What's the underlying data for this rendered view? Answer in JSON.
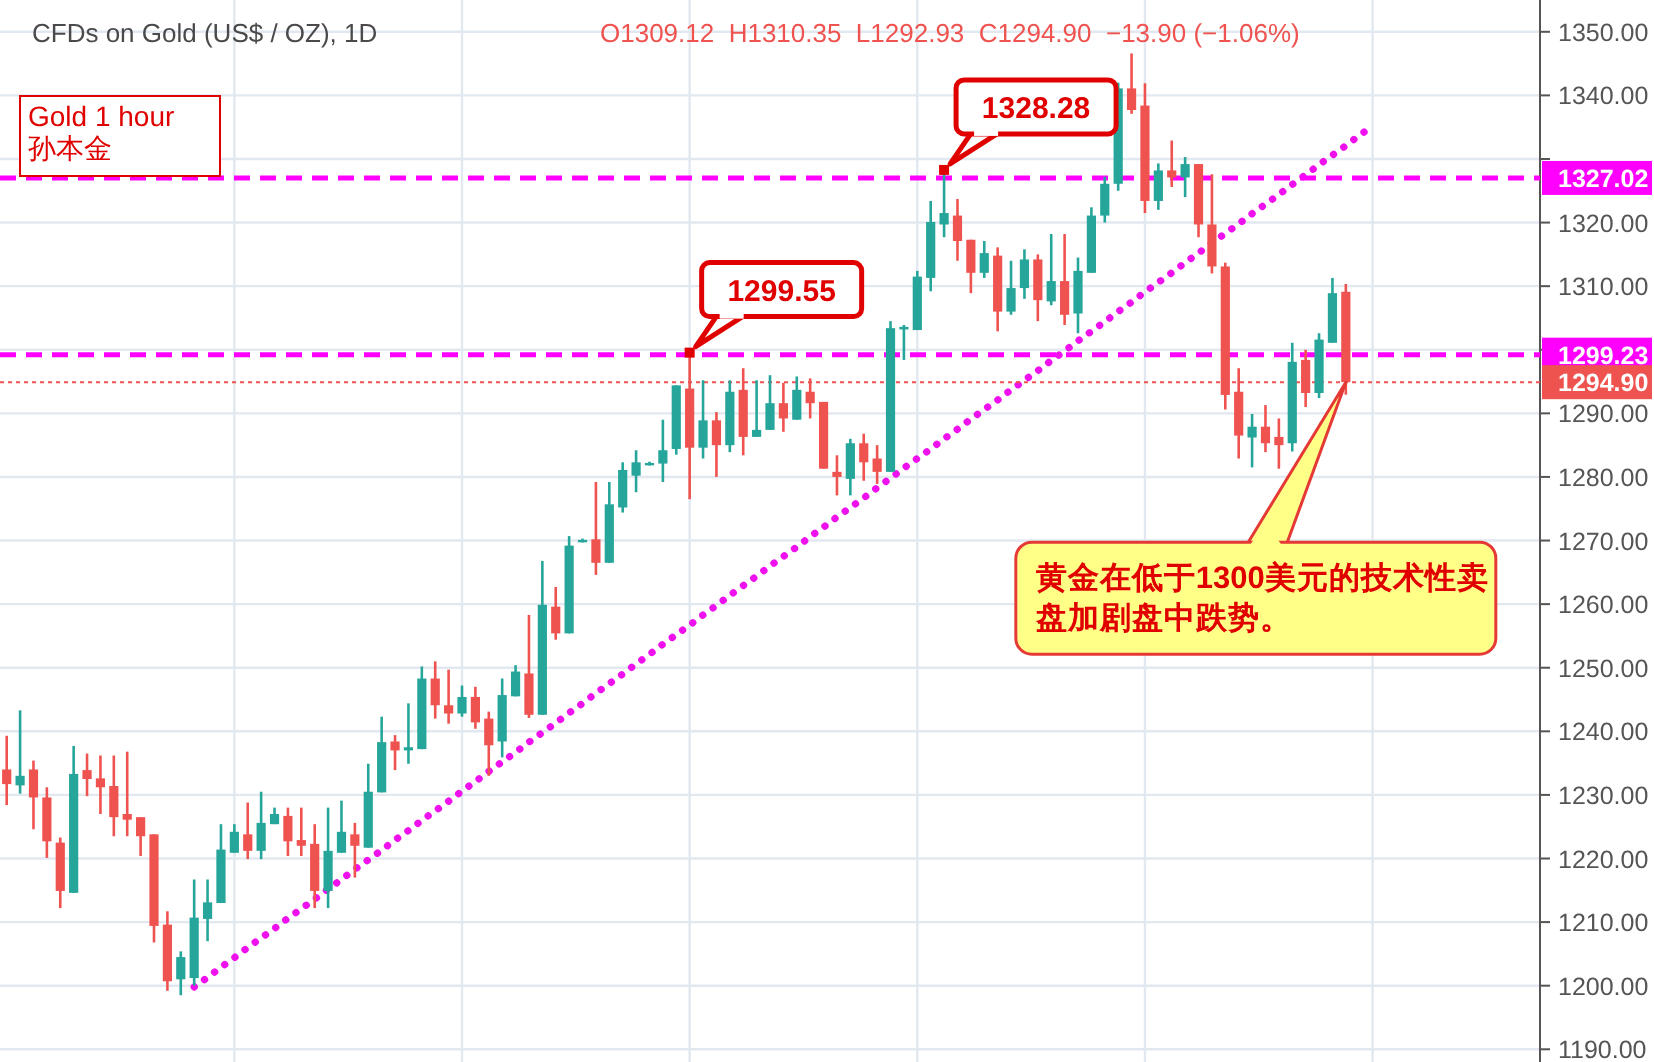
{
  "chart_data": {
    "type": "candlestick",
    "title": "CFDs on Gold (US$ / OZ), 1D",
    "subtitle": "O1309.12  H1310.35  L1292.93  C1294.90  −13.90 (−1.06%)",
    "categories": [
      null,
      null,
      null,
      null,
      null,
      null,
      null,
      null,
      null,
      null,
      null,
      null,
      null,
      null,
      null,
      null,
      null,
      null,
      null,
      null,
      null,
      null,
      null,
      null,
      null,
      null,
      null,
      null,
      null,
      null,
      null,
      null,
      null,
      null,
      null,
      null,
      null,
      null,
      null,
      null,
      null,
      null,
      null,
      null,
      null,
      null,
      null,
      null,
      null,
      null,
      null,
      null,
      null,
      null,
      null,
      null,
      null,
      null,
      null,
      null,
      null,
      null,
      null,
      null,
      null,
      null,
      null,
      null,
      null,
      null,
      null,
      null,
      null,
      null,
      null,
      null,
      null,
      null,
      null,
      null,
      null,
      null,
      null,
      null,
      null,
      null,
      null,
      null,
      null,
      null,
      null,
      null,
      null,
      null,
      null,
      null,
      null,
      null,
      null,
      null,
      null,
      null,
      null,
      null,
      null,
      null,
      null,
      null,
      null,
      null,
      null,
      null,
      null,
      null,
      null
    ],
    "ohlc": [
      [
        1234.0,
        1239.3,
        1228.4,
        1231.7
      ],
      [
        1231.5,
        1243.3,
        1230.2,
        1233.0
      ],
      [
        1234.0,
        1235.4,
        1224.6,
        1229.6
      ],
      [
        1229.6,
        1231.2,
        1220.1,
        1222.7
      ],
      [
        1222.5,
        1223.3,
        1212.2,
        1214.9
      ],
      [
        1214.6,
        1237.7,
        1214.6,
        1233.3
      ],
      [
        1233.9,
        1236.5,
        1229.8,
        1232.5
      ],
      [
        1232.6,
        1236.2,
        1227.0,
        1231.2
      ],
      [
        1231.4,
        1236.2,
        1223.5,
        1226.5
      ],
      [
        1227.0,
        1236.8,
        1223.5,
        1226.1
      ],
      [
        1226.5,
        1226.5,
        1220.4,
        1223.5
      ],
      [
        1223.8,
        1223.8,
        1206.8,
        1209.4
      ],
      [
        1209.6,
        1211.7,
        1199.2,
        1200.7
      ],
      [
        1201.0,
        1205.4,
        1198.5,
        1204.5
      ],
      [
        1201.2,
        1216.7,
        1200.0,
        1210.7
      ],
      [
        1210.5,
        1216.7,
        1207.0,
        1213.1
      ],
      [
        1213.0,
        1225.4,
        1213.0,
        1221.4
      ],
      [
        1220.9,
        1225.4,
        1220.9,
        1224.2
      ],
      [
        1223.8,
        1228.8,
        1219.9,
        1221.2
      ],
      [
        1221.2,
        1230.5,
        1219.9,
        1225.6
      ],
      [
        1225.4,
        1228.0,
        1225.4,
        1227.0
      ],
      [
        1226.7,
        1228.0,
        1220.4,
        1222.7
      ],
      [
        1222.9,
        1228.0,
        1220.4,
        1222.0
      ],
      [
        1222.3,
        1225.4,
        1212.2,
        1214.9
      ],
      [
        1214.9,
        1228.0,
        1212.2,
        1221.2
      ],
      [
        1220.9,
        1229.1,
        1220.9,
        1224.2
      ],
      [
        1223.8,
        1225.6,
        1217.0,
        1222.0
      ],
      [
        1221.7,
        1234.9,
        1221.7,
        1230.5
      ],
      [
        1230.4,
        1242.3,
        1230.4,
        1238.3
      ],
      [
        1238.4,
        1239.4,
        1233.9,
        1237.0
      ],
      [
        1237.0,
        1244.4,
        1234.9,
        1237.5
      ],
      [
        1237.2,
        1250.2,
        1237.2,
        1248.3
      ],
      [
        1248.3,
        1251.0,
        1242.0,
        1244.1
      ],
      [
        1244.1,
        1249.7,
        1241.2,
        1242.8
      ],
      [
        1242.8,
        1247.2,
        1242.3,
        1245.4
      ],
      [
        1245.4,
        1247.0,
        1240.4,
        1241.4
      ],
      [
        1242.0,
        1243.1,
        1233.0,
        1237.8
      ],
      [
        1238.4,
        1248.3,
        1235.9,
        1245.7
      ],
      [
        1245.5,
        1250.4,
        1245.5,
        1249.4
      ],
      [
        1249.1,
        1258.3,
        1242.1,
        1242.6
      ],
      [
        1242.6,
        1266.8,
        1242.6,
        1259.9
      ],
      [
        1259.6,
        1262.7,
        1254.4,
        1255.4
      ],
      [
        1255.4,
        1270.7,
        1255.4,
        1269.2
      ],
      [
        1269.9,
        1270.3,
        1269.7,
        1270.1
      ],
      [
        1270.2,
        1279.2,
        1264.6,
        1266.5
      ],
      [
        1266.5,
        1279.2,
        1266.5,
        1275.7
      ],
      [
        1275.2,
        1282.3,
        1274.4,
        1281.1
      ],
      [
        1280.2,
        1284.2,
        1277.6,
        1282.3
      ],
      [
        1282.0,
        1282.4,
        1281.8,
        1282.2
      ],
      [
        1282.1,
        1289.0,
        1279.2,
        1284.2
      ],
      [
        1284.4,
        1294.4,
        1283.5,
        1294.4
      ],
      [
        1293.9,
        1299.55,
        1276.5,
        1284.6
      ],
      [
        1284.6,
        1295.2,
        1282.9,
        1288.9
      ],
      [
        1288.9,
        1290.2,
        1280.0,
        1285.0
      ],
      [
        1285.0,
        1295.2,
        1283.9,
        1293.4
      ],
      [
        1293.7,
        1297.1,
        1283.4,
        1286.3
      ],
      [
        1286.3,
        1295.2,
        1286.3,
        1287.4
      ],
      [
        1287.4,
        1296.0,
        1287.4,
        1291.6
      ],
      [
        1291.6,
        1294.8,
        1287.1,
        1289.2
      ],
      [
        1289.0,
        1295.8,
        1289.0,
        1293.7
      ],
      [
        1293.4,
        1295.5,
        1289.2,
        1291.6
      ],
      [
        1291.8,
        1291.8,
        1281.3,
        1281.3
      ],
      [
        1280.8,
        1283.4,
        1277.1,
        1280.0
      ],
      [
        1279.7,
        1286.0,
        1277.1,
        1285.3
      ],
      [
        1285.3,
        1286.8,
        1279.4,
        1282.3
      ],
      [
        1282.9,
        1285.0,
        1278.9,
        1280.8
      ],
      [
        1280.8,
        1304.5,
        1280.8,
        1303.4
      ],
      [
        1303.2,
        1303.9,
        1298.4,
        1303.6
      ],
      [
        1303.1,
        1312.4,
        1303.1,
        1311.5
      ],
      [
        1311.3,
        1323.4,
        1309.2,
        1320.1
      ],
      [
        1319.7,
        1328.28,
        1317.7,
        1321.5
      ],
      [
        1321.1,
        1323.7,
        1314.0,
        1317.1
      ],
      [
        1317.3,
        1317.3,
        1308.9,
        1312.1
      ],
      [
        1312.1,
        1317.1,
        1311.3,
        1315.2
      ],
      [
        1314.8,
        1316.1,
        1302.9,
        1306.0
      ],
      [
        1306.0,
        1314.0,
        1305.5,
        1309.7
      ],
      [
        1309.7,
        1315.8,
        1308.0,
        1314.2
      ],
      [
        1314.2,
        1315.0,
        1304.5,
        1307.8
      ],
      [
        1307.6,
        1318.2,
        1307.0,
        1310.8
      ],
      [
        1310.8,
        1318.2,
        1303.9,
        1305.5
      ],
      [
        1305.7,
        1314.5,
        1302.6,
        1312.4
      ],
      [
        1312.1,
        1322.4,
        1312.1,
        1321.1
      ],
      [
        1321.1,
        1327.2,
        1320.0,
        1326.1
      ],
      [
        1326.1,
        1342.0,
        1325.0,
        1341.1
      ],
      [
        1341.1,
        1346.6,
        1337.1,
        1337.7
      ],
      [
        1338.4,
        1341.9,
        1321.5,
        1323.4
      ],
      [
        1323.4,
        1329.3,
        1322.0,
        1328.2
      ],
      [
        1328.2,
        1332.9,
        1325.6,
        1327.1
      ],
      [
        1327.1,
        1330.3,
        1324.0,
        1329.2
      ],
      [
        1329.2,
        1329.2,
        1317.7,
        1319.7
      ],
      [
        1319.7,
        1327.6,
        1312.0,
        1313.1
      ],
      [
        1313.1,
        1313.7,
        1290.6,
        1292.9
      ],
      [
        1293.4,
        1297.1,
        1282.9,
        1286.5
      ],
      [
        1286.2,
        1289.9,
        1281.5,
        1287.9
      ],
      [
        1287.9,
        1291.3,
        1283.9,
        1285.3
      ],
      [
        1286.3,
        1289.2,
        1281.3,
        1285.0
      ],
      [
        1285.3,
        1301.1,
        1284.0,
        1298.1
      ],
      [
        1298.4,
        1300.0,
        1291.0,
        1293.2
      ],
      [
        1293.2,
        1302.6,
        1292.4,
        1301.6
      ],
      [
        1301.1,
        1311.3,
        1301.1,
        1308.9
      ],
      [
        1309.12,
        1310.35,
        1292.93,
        1294.9
      ],
      null,
      null,
      null,
      null,
      null,
      null,
      null,
      null,
      null,
      null,
      null,
      null,
      null,
      null
    ],
    "series": [
      {
        "type": "line",
        "color": "#ee11ee",
        "line_style": "dotted",
        "values": [
          null,
          null,
          null,
          null,
          null,
          null,
          null,
          null,
          null,
          null,
          null,
          null,
          null,
          null,
          1199.8,
          1201.3,
          1202.9,
          1204.4,
          1206.0,
          1207.5,
          1209.0,
          1210.6,
          1212.1,
          1213.6,
          1215.2,
          1216.7,
          1218.3,
          1219.8,
          1221.3,
          1222.9,
          1224.4,
          1226.0,
          1227.5,
          1229.0,
          1230.6,
          1232.1,
          1233.7,
          1235.2,
          1236.7,
          1238.3,
          1239.8,
          1241.3,
          1242.9,
          1244.4,
          1246.0,
          1247.5,
          1249.0,
          1250.6,
          1252.1,
          1253.7,
          1255.2,
          1256.7,
          1258.3,
          1259.8,
          1261.4,
          1262.9,
          1264.4,
          1266.0,
          1267.5,
          1269.0,
          1270.6,
          1272.1,
          1273.7,
          1275.2,
          1276.7,
          1278.3,
          1279.8,
          1281.4,
          1282.9,
          1284.4,
          1286.0,
          1287.5,
          1289.1,
          1290.6,
          1292.1,
          1293.7,
          1295.2,
          1296.7,
          1298.3,
          1299.8,
          1301.4,
          1302.9,
          1304.4,
          1306.0,
          1307.5,
          1309.1,
          1310.6,
          1312.1,
          1313.7,
          1315.2,
          1316.8,
          1318.3,
          1319.8,
          1321.4,
          1322.9,
          1324.4,
          1326.0,
          1327.5,
          1329.1,
          1330.6,
          1332.1,
          1333.7,
          1335.2,
          null,
          null,
          null,
          null,
          null,
          null,
          null,
          null,
          null,
          null,
          null,
          null
        ]
      }
    ],
    "ylim": [
      1188,
      1355
    ],
    "yticks": [
      {
        "value": 1190,
        "label": "1190.00"
      },
      {
        "value": 1200,
        "label": "1200.00"
      },
      {
        "value": 1210,
        "label": "1210.00"
      },
      {
        "value": 1220,
        "label": "1220.00"
      },
      {
        "value": 1230,
        "label": "1230.00"
      },
      {
        "value": 1240,
        "label": "1240.00"
      },
      {
        "value": 1250,
        "label": "1250.00"
      },
      {
        "value": 1260,
        "label": "1260.00"
      },
      {
        "value": 1270,
        "label": "1270.00"
      },
      {
        "value": 1280,
        "label": "1280.00"
      },
      {
        "value": 1290,
        "label": "1290.00"
      },
      {
        "value": 1300,
        "label": null
      },
      {
        "value": 1310,
        "label": "1310.00"
      },
      {
        "value": 1320,
        "label": "1320.00"
      },
      {
        "value": 1330,
        "label": null
      },
      {
        "value": 1340,
        "label": "1340.00"
      },
      {
        "value": 1350,
        "label": "1350.00"
      }
    ],
    "ref_lines": [
      {
        "axis": "y",
        "value": 1327.02,
        "label": "1327.02",
        "color": "#ff00ff",
        "line_style": "dashed"
      },
      {
        "axis": "y",
        "value": 1299.23,
        "label": "1299.23",
        "color": "#ff00ff",
        "line_style": "dashed"
      },
      {
        "axis": "y",
        "value": 1294.9,
        "label": "1294.90",
        "color": "#ef5350",
        "line_style": "dotted"
      }
    ],
    "annotations": [
      "Gold 1 hour",
      "孙本金",
      "黄金在低于1300美元的技术性卖盘加剧盘中跌势。",
      {
        "text": "1299.55",
        "y": 1299.55
      },
      {
        "text": "1328.28",
        "y": 1328.28
      }
    ],
    "grid": true
  }
}
